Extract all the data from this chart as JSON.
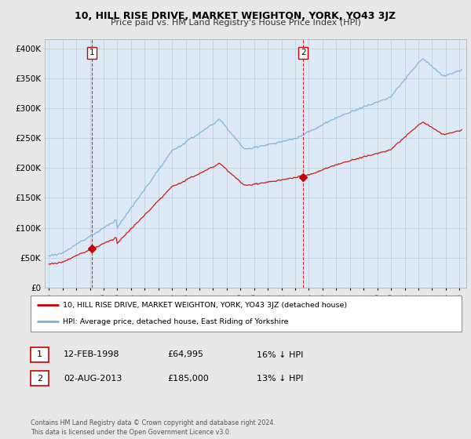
{
  "title": "10, HILL RISE DRIVE, MARKET WEIGHTON, YORK, YO43 3JZ",
  "subtitle": "Price paid vs. HM Land Registry's House Price Index (HPI)",
  "ylabel_ticks": [
    "£0",
    "£50K",
    "£100K",
    "£150K",
    "£200K",
    "£250K",
    "£300K",
    "£350K",
    "£400K"
  ],
  "ytick_values": [
    0,
    50000,
    100000,
    150000,
    200000,
    250000,
    300000,
    350000,
    400000
  ],
  "ylim": [
    0,
    415000
  ],
  "xlim_start": 1994.7,
  "xlim_end": 2025.5,
  "sale1": {
    "year": 1998.12,
    "price": 64995,
    "label": "1"
  },
  "sale2": {
    "year": 2013.58,
    "price": 185000,
    "label": "2"
  },
  "hpi_color": "#7aaed4",
  "sale_color": "#cc0000",
  "plot_bg_color": "#ddeaf5",
  "fig_bg_color": "#e8e8e8",
  "legend_sale_label": "10, HILL RISE DRIVE, MARKET WEIGHTON, YORK, YO43 3JZ (detached house)",
  "legend_hpi_label": "HPI: Average price, detached house, East Riding of Yorkshire",
  "table_rows": [
    {
      "num": "1",
      "date": "12-FEB-1998",
      "price": "£64,995",
      "hpi": "16% ↓ HPI"
    },
    {
      "num": "2",
      "date": "02-AUG-2013",
      "price": "£185,000",
      "hpi": "13% ↓ HPI"
    }
  ],
  "footnote": "Contains HM Land Registry data © Crown copyright and database right 2024.\nThis data is licensed under the Open Government Licence v3.0."
}
